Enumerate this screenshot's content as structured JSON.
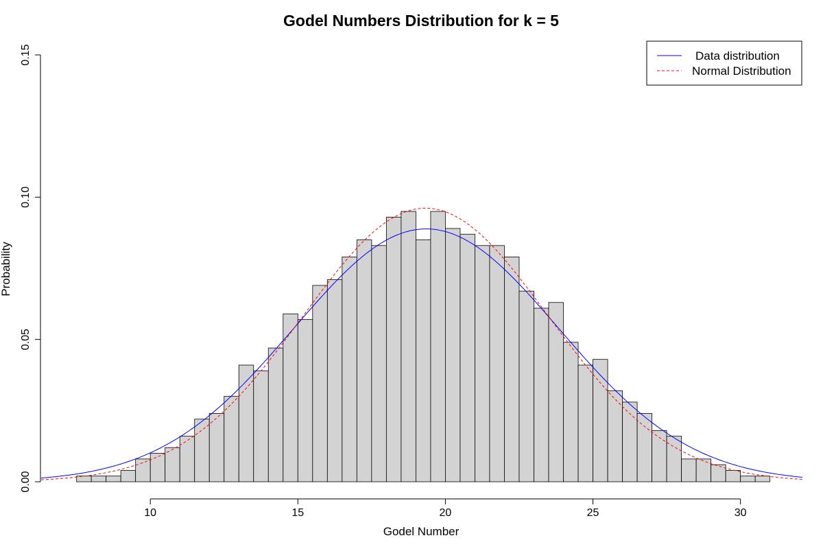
{
  "chart_data": {
    "type": "bar",
    "title": "Godel Numbers Distribution for k =  5",
    "xlabel": "Godel Number",
    "ylabel": "Probability",
    "xlim": [
      6.3,
      32.1
    ],
    "ylim": [
      0,
      0.15
    ],
    "x_ticks": [
      "10",
      "15",
      "20",
      "25",
      "30"
    ],
    "y_ticks": [
      "0.00",
      "0.05",
      "0.10",
      "0.15"
    ],
    "grid": false,
    "legend_position": "top-right",
    "bin_width": 0.5,
    "bins_start": 7.5,
    "values": [
      0.002,
      0.002,
      0.002,
      0.004,
      0.008,
      0.01,
      0.012,
      0.016,
      0.022,
      0.024,
      0.03,
      0.041,
      0.039,
      0.047,
      0.059,
      0.057,
      0.069,
      0.071,
      0.079,
      0.085,
      0.083,
      0.093,
      0.095,
      0.085,
      0.095,
      0.089,
      0.087,
      0.083,
      0.083,
      0.079,
      0.067,
      0.061,
      0.063,
      0.049,
      0.041,
      0.043,
      0.032,
      0.028,
      0.024,
      0.018,
      0.016,
      0.008,
      0.008,
      0.006,
      0.004,
      0.002,
      0.002
    ],
    "bar_fill": "#d3d3d3",
    "series": [
      {
        "name": "Data distribution",
        "kind": "density",
        "color": "#0000ff",
        "line_style": "solid",
        "mean": 19.35,
        "sd": 4.49
      },
      {
        "name": "Normal Distribution",
        "kind": "normal",
        "color": "#ff0000",
        "line_style": "dashed",
        "mean": 19.33,
        "sd": 4.15
      }
    ]
  }
}
